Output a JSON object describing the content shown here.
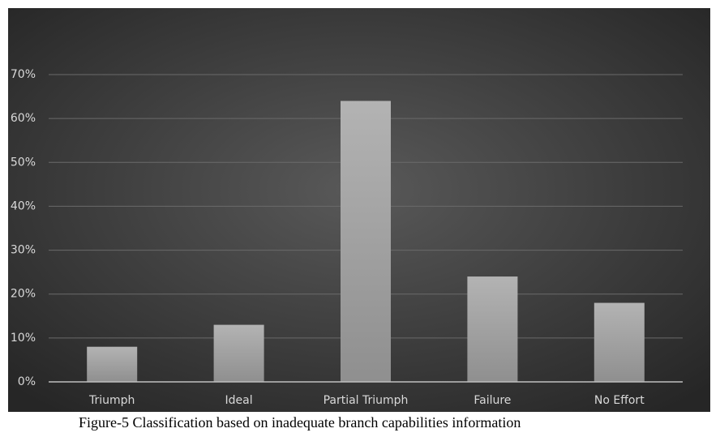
{
  "chart_data": {
    "type": "bar",
    "categories": [
      "Triumph",
      "Ideal",
      "Partial Triumph",
      "Failure",
      "No Effort"
    ],
    "values": [
      8,
      13,
      64,
      24,
      18
    ],
    "color": "#a6a6a6",
    "ylim": [
      0,
      70
    ],
    "yticks": [
      {
        "value": 0,
        "label": "0%"
      },
      {
        "value": 10,
        "label": "10%"
      },
      {
        "value": 20,
        "label": "20%"
      },
      {
        "value": 30,
        "label": "30%"
      },
      {
        "value": 40,
        "label": "40%"
      },
      {
        "value": 50,
        "label": "50%"
      },
      {
        "value": 60,
        "label": "60%"
      },
      {
        "value": 70,
        "label": "70%"
      }
    ],
    "grid": true,
    "caption": "Figure-5 Classification based on inadequate branch capabilities information"
  }
}
